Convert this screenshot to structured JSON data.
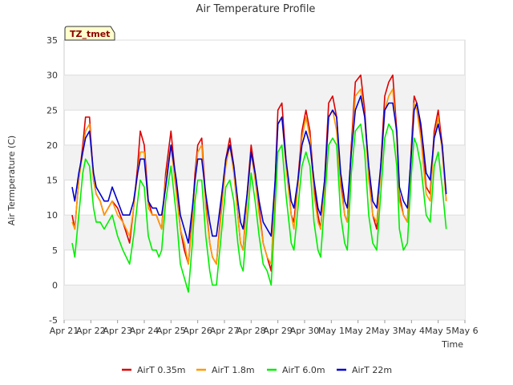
{
  "chart_data": {
    "type": "line",
    "title": "Air Temperature Profile",
    "xlabel": "Time",
    "ylabel": "Air Termperature (C)",
    "badge": "TZ_tmet",
    "ylim": [
      -5,
      35
    ],
    "yticks": [
      -5,
      0,
      5,
      10,
      15,
      20,
      25,
      30,
      35
    ],
    "xlim": [
      0,
      15
    ],
    "xtick_labels": [
      "Apr 21",
      "Apr 22",
      "Apr 23",
      "Apr 24",
      "Apr 25",
      "Apr 26",
      "Apr 27",
      "Apr 28",
      "Apr 29",
      "Apr 30",
      "May 1",
      "May 2",
      "May 3",
      "May 4",
      "May 5",
      "May 6"
    ],
    "grid": "horizontal bands",
    "legend_position": "bottom",
    "series": [
      {
        "name": "AirT 0.35m",
        "color": "#dd0000",
        "x": [
          0.3,
          0.4,
          0.55,
          0.7,
          0.8,
          0.95,
          1.1,
          1.2,
          1.35,
          1.5,
          1.65,
          1.8,
          2.0,
          2.2,
          2.45,
          2.6,
          2.75,
          2.85,
          3.0,
          3.15,
          3.3,
          3.45,
          3.55,
          3.65,
          3.8,
          4.0,
          4.2,
          4.35,
          4.5,
          4.65,
          4.8,
          4.9,
          5.0,
          5.15,
          5.3,
          5.45,
          5.55,
          5.7,
          5.9,
          6.05,
          6.2,
          6.35,
          6.5,
          6.6,
          6.7,
          6.85,
          7.0,
          7.15,
          7.3,
          7.45,
          7.6,
          7.75,
          7.9,
          8.0,
          8.15,
          8.3,
          8.5,
          8.6,
          8.75,
          8.9,
          9.05,
          9.2,
          9.35,
          9.5,
          9.6,
          9.75,
          9.9,
          10.05,
          10.2,
          10.35,
          10.5,
          10.6,
          10.75,
          10.9,
          11.1,
          11.25,
          11.4,
          11.55,
          11.7,
          11.85,
          12.0,
          12.15,
          12.3,
          12.45,
          12.55,
          12.7,
          12.85,
          13.0,
          13.1,
          13.2,
          13.35,
          13.55,
          13.7,
          13.85,
          14.0,
          14.15,
          14.3
        ],
        "y": [
          10,
          8,
          15,
          20,
          24,
          24,
          15,
          13,
          12,
          10,
          11,
          12,
          11,
          9,
          6,
          11,
          17,
          22,
          20,
          12,
          10,
          10,
          9,
          8,
          16,
          22,
          14,
          8,
          5,
          3,
          10,
          16,
          20,
          21,
          12,
          6,
          4,
          3,
          12,
          18,
          21,
          17,
          10,
          6,
          5,
          13,
          20,
          16,
          11,
          6,
          4,
          2,
          15,
          25,
          26,
          18,
          10,
          9,
          15,
          22,
          25,
          22,
          14,
          10,
          8,
          15,
          26,
          27,
          24,
          15,
          10,
          9,
          20,
          29,
          30,
          25,
          16,
          10,
          8,
          17,
          27,
          29,
          30,
          22,
          13,
          10,
          9,
          20,
          27,
          26,
          22,
          14,
          13,
          22,
          25,
          20,
          12
        ]
      },
      {
        "name": "AirT 1.8m",
        "color": "#ff9900",
        "x": [
          0.3,
          0.4,
          0.55,
          0.7,
          0.8,
          0.95,
          1.1,
          1.2,
          1.35,
          1.5,
          1.65,
          1.8,
          2.0,
          2.2,
          2.45,
          2.6,
          2.75,
          2.85,
          3.0,
          3.15,
          3.3,
          3.45,
          3.55,
          3.65,
          3.8,
          4.0,
          4.2,
          4.35,
          4.5,
          4.65,
          4.8,
          4.9,
          5.0,
          5.15,
          5.3,
          5.45,
          5.55,
          5.7,
          5.9,
          6.05,
          6.2,
          6.35,
          6.5,
          6.6,
          6.7,
          6.85,
          7.0,
          7.15,
          7.3,
          7.45,
          7.6,
          7.75,
          7.9,
          8.0,
          8.15,
          8.3,
          8.5,
          8.6,
          8.75,
          8.9,
          9.05,
          9.2,
          9.35,
          9.5,
          9.6,
          9.75,
          9.9,
          10.05,
          10.2,
          10.35,
          10.5,
          10.6,
          10.75,
          10.9,
          11.1,
          11.25,
          11.4,
          11.55,
          11.7,
          11.85,
          12.0,
          12.15,
          12.3,
          12.45,
          12.55,
          12.7,
          12.85,
          13.0,
          13.1,
          13.2,
          13.35,
          13.55,
          13.7,
          13.85,
          14.0,
          14.15,
          14.3
        ],
        "y": [
          9,
          8,
          15,
          19,
          22,
          23,
          15,
          13,
          12,
          10,
          11,
          12,
          10,
          9,
          7,
          11,
          16,
          19,
          19,
          11,
          10,
          10,
          9,
          8,
          15,
          20,
          13,
          8,
          6,
          3,
          9,
          15,
          19,
          20,
          11,
          6,
          4,
          3,
          11,
          17,
          20,
          16,
          10,
          6,
          5,
          12,
          19,
          15,
          10,
          6,
          4,
          3,
          14,
          23,
          24,
          17,
          10,
          8,
          14,
          21,
          24,
          21,
          13,
          9,
          8,
          14,
          24,
          25,
          22,
          14,
          10,
          9,
          19,
          27,
          28,
          24,
          15,
          10,
          9,
          16,
          25,
          27,
          28,
          21,
          12,
          10,
          9,
          19,
          26,
          25,
          21,
          13,
          12,
          21,
          24,
          19,
          12
        ]
      },
      {
        "name": "AirT 6.0m",
        "color": "#00ee00",
        "x": [
          0.3,
          0.4,
          0.55,
          0.7,
          0.8,
          0.95,
          1.1,
          1.2,
          1.35,
          1.5,
          1.65,
          1.8,
          2.0,
          2.2,
          2.45,
          2.6,
          2.75,
          2.85,
          3.0,
          3.15,
          3.3,
          3.45,
          3.55,
          3.65,
          3.8,
          4.0,
          4.2,
          4.35,
          4.5,
          4.65,
          4.8,
          4.9,
          5.0,
          5.15,
          5.3,
          5.45,
          5.55,
          5.7,
          5.9,
          6.05,
          6.2,
          6.35,
          6.5,
          6.6,
          6.7,
          6.85,
          7.0,
          7.15,
          7.3,
          7.45,
          7.6,
          7.75,
          7.9,
          8.0,
          8.15,
          8.3,
          8.5,
          8.6,
          8.75,
          8.9,
          9.05,
          9.2,
          9.35,
          9.5,
          9.6,
          9.75,
          9.9,
          10.05,
          10.2,
          10.35,
          10.5,
          10.6,
          10.75,
          10.9,
          11.1,
          11.25,
          11.4,
          11.55,
          11.7,
          11.85,
          12.0,
          12.15,
          12.3,
          12.45,
          12.55,
          12.7,
          12.85,
          13.0,
          13.1,
          13.2,
          13.35,
          13.55,
          13.7,
          13.85,
          14.0,
          14.15,
          14.3
        ],
        "y": [
          6,
          4,
          10,
          16,
          18,
          17,
          11,
          9,
          9,
          8,
          9,
          10,
          7,
          5,
          3,
          7,
          12,
          15,
          14,
          7,
          5,
          5,
          4,
          5,
          12,
          17,
          10,
          3,
          1,
          -1,
          6,
          12,
          15,
          15,
          7,
          2,
          0,
          0,
          8,
          14,
          15,
          12,
          6,
          3,
          2,
          9,
          16,
          12,
          7,
          3,
          2,
          0,
          11,
          19,
          20,
          13,
          6,
          5,
          11,
          17,
          19,
          17,
          9,
          5,
          4,
          12,
          20,
          21,
          20,
          10,
          6,
          5,
          16,
          22,
          23,
          19,
          10,
          6,
          5,
          13,
          21,
          23,
          22,
          17,
          8,
          5,
          6,
          16,
          21,
          20,
          17,
          10,
          9,
          17,
          19,
          14,
          8
        ]
      },
      {
        "name": "AirT 22m",
        "color": "#0000cc",
        "x": [
          0.3,
          0.4,
          0.55,
          0.7,
          0.8,
          0.95,
          1.1,
          1.2,
          1.35,
          1.5,
          1.65,
          1.8,
          2.0,
          2.2,
          2.45,
          2.6,
          2.75,
          2.85,
          3.0,
          3.15,
          3.3,
          3.45,
          3.55,
          3.65,
          3.8,
          4.0,
          4.2,
          4.35,
          4.5,
          4.65,
          4.8,
          4.9,
          5.0,
          5.15,
          5.3,
          5.45,
          5.55,
          5.7,
          5.9,
          6.05,
          6.2,
          6.35,
          6.5,
          6.6,
          6.7,
          6.85,
          7.0,
          7.15,
          7.3,
          7.45,
          7.6,
          7.75,
          7.9,
          8.0,
          8.15,
          8.3,
          8.5,
          8.6,
          8.75,
          8.9,
          9.05,
          9.2,
          9.35,
          9.5,
          9.6,
          9.75,
          9.9,
          10.05,
          10.2,
          10.35,
          10.5,
          10.6,
          10.75,
          10.9,
          11.1,
          11.25,
          11.4,
          11.55,
          11.7,
          11.85,
          12.0,
          12.15,
          12.3,
          12.45,
          12.55,
          12.7,
          12.85,
          13.0,
          13.1,
          13.2,
          13.35,
          13.55,
          13.7,
          13.85,
          14.0,
          14.15,
          14.3
        ],
        "y": [
          14,
          12,
          16,
          19,
          21,
          22,
          16,
          14,
          13,
          12,
          12,
          14,
          12,
          10,
          10,
          12,
          16,
          18,
          18,
          12,
          11,
          11,
          10,
          10,
          14,
          20,
          15,
          10,
          8,
          6,
          11,
          15,
          18,
          18,
          13,
          9,
          7,
          7,
          13,
          18,
          20,
          17,
          12,
          9,
          8,
          13,
          19,
          16,
          12,
          9,
          8,
          7,
          15,
          23,
          24,
          18,
          12,
          11,
          15,
          20,
          22,
          20,
          15,
          11,
          10,
          15,
          24,
          25,
          24,
          16,
          12,
          11,
          19,
          25,
          27,
          24,
          17,
          12,
          11,
          17,
          25,
          26,
          26,
          22,
          14,
          12,
          11,
          19,
          25,
          26,
          23,
          16,
          15,
          21,
          23,
          20,
          13
        ]
      }
    ]
  }
}
